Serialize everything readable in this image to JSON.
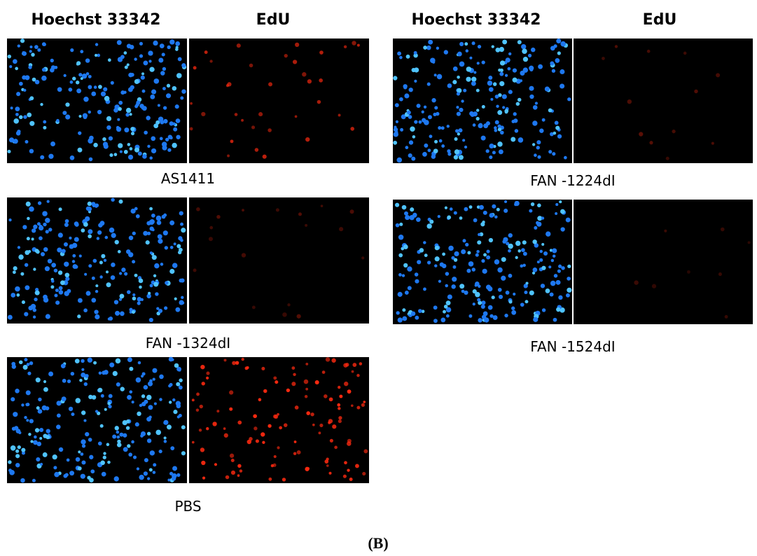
{
  "headers": [
    {
      "hoechst": "Hoechst 33342",
      "edu": "EdU"
    },
    {
      "hoechst": "Hoechst 33342",
      "edu": "EdU"
    }
  ],
  "panels": [
    {
      "label": "AS1411"
    },
    {
      "label": "FAN -1324dI"
    },
    {
      "label": "PBS"
    },
    {
      "label": "FAN -1224dI"
    },
    {
      "label": "FAN -1524dI"
    }
  ],
  "caption": "(B)"
}
